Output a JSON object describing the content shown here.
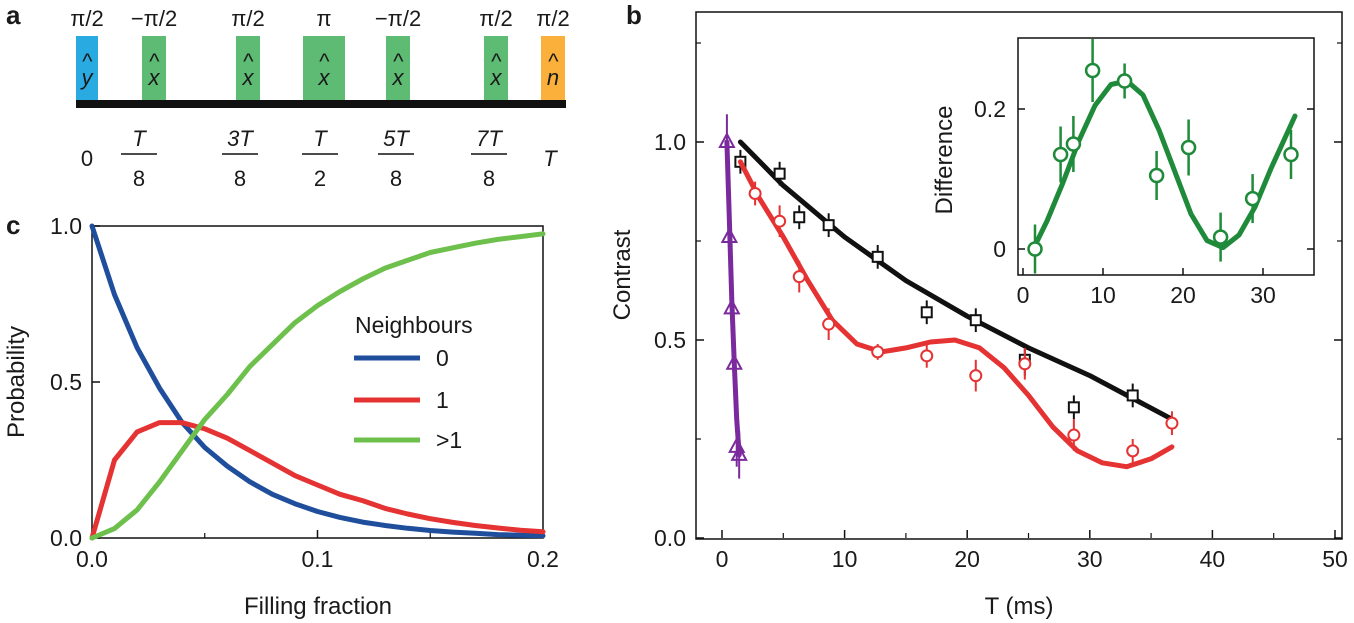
{
  "panels": {
    "a": "a",
    "b": "b",
    "c": "c"
  },
  "panel_a": {
    "axis_color": "#111111",
    "pulses": [
      {
        "angle": "π/2",
        "op": "y",
        "color": "#29abe2"
      },
      {
        "angle": "−π/2",
        "op": "x",
        "color": "#5dbb74"
      },
      {
        "angle": "π/2",
        "op": "x",
        "color": "#5dbb74"
      },
      {
        "angle": "π",
        "op": "x",
        "color": "#5dbb74"
      },
      {
        "angle": "−π/2",
        "op": "x",
        "color": "#5dbb74"
      },
      {
        "angle": "π/2",
        "op": "x",
        "color": "#5dbb74"
      },
      {
        "angle": "π/2",
        "op": "n",
        "color": "#fbb03b"
      }
    ],
    "hat": "^",
    "times": [
      {
        "plain": "0"
      },
      {
        "num": "T",
        "den": "8"
      },
      {
        "num": "3T",
        "den": "8"
      },
      {
        "num": "T",
        "den": "2"
      },
      {
        "num": "5T",
        "den": "8"
      },
      {
        "num": "7T",
        "den": "8"
      },
      {
        "plain": "T"
      }
    ]
  },
  "chart_data": [
    {
      "panel": "c",
      "type": "line",
      "xlabel": "Filling fraction",
      "ylabel": "Probability",
      "xlim": [
        0,
        0.2
      ],
      "ylim": [
        0,
        1.0
      ],
      "xticks": [
        "0.0",
        "0.1",
        "0.2"
      ],
      "yticks": [
        "0.0",
        "0.5",
        "1.0"
      ],
      "legend": {
        "title": "Neighbours",
        "placement": "right"
      },
      "x": [
        0.0,
        0.01,
        0.02,
        0.03,
        0.04,
        0.05,
        0.06,
        0.07,
        0.08,
        0.09,
        0.1,
        0.11,
        0.12,
        0.13,
        0.14,
        0.15,
        0.16,
        0.17,
        0.18,
        0.19,
        0.2
      ],
      "series": [
        {
          "name": "0",
          "color": "#1f4e9c",
          "values": [
            1.0,
            0.78,
            0.61,
            0.48,
            0.37,
            0.29,
            0.23,
            0.18,
            0.14,
            0.11,
            0.085,
            0.066,
            0.051,
            0.04,
            0.031,
            0.024,
            0.019,
            0.015,
            0.011,
            0.009,
            0.007
          ]
        },
        {
          "name": "1",
          "color": "#e53232",
          "values": [
            0.0,
            0.25,
            0.34,
            0.37,
            0.37,
            0.35,
            0.32,
            0.28,
            0.24,
            0.2,
            0.17,
            0.14,
            0.12,
            0.095,
            0.077,
            0.062,
            0.05,
            0.04,
            0.032,
            0.025,
            0.02
          ]
        },
        {
          "name": ">1",
          "color": "#6dc04b",
          "values": [
            0.0,
            0.03,
            0.09,
            0.18,
            0.28,
            0.38,
            0.46,
            0.55,
            0.62,
            0.69,
            0.745,
            0.79,
            0.83,
            0.865,
            0.89,
            0.915,
            0.93,
            0.945,
            0.957,
            0.966,
            0.975
          ]
        }
      ]
    },
    {
      "panel": "b",
      "type": "scatter",
      "xlabel": "T (ms)",
      "ylabel": "Contrast",
      "xlim": [
        -3,
        50
      ],
      "ylim": [
        0,
        1.3
      ],
      "xticks": [
        "0",
        "10",
        "20",
        "30",
        "40",
        "50"
      ],
      "yticks": [
        "0.0",
        "0.5",
        "1.0"
      ],
      "series": [
        {
          "name": "purple",
          "color": "#7a2a9c",
          "marker": "triangle",
          "x": [
            0.4,
            0.6,
            0.8,
            1.0,
            1.2,
            1.4
          ],
          "y": [
            1.0,
            0.76,
            0.58,
            0.44,
            0.23,
            0.21
          ],
          "err": [
            0.07,
            0.05,
            0.04,
            0.04,
            0.05,
            0.06
          ],
          "fit_x": [
            0.4,
            0.6,
            0.8,
            1.0,
            1.2,
            1.4
          ],
          "fit_y": [
            1.0,
            0.8,
            0.6,
            0.44,
            0.3,
            0.21
          ]
        },
        {
          "name": "black",
          "color": "#111111",
          "marker": "square",
          "x": [
            1.5,
            4.7,
            6.3,
            8.7,
            12.7,
            16.7,
            20.7,
            24.7,
            28.7,
            33.5
          ],
          "y": [
            0.95,
            0.92,
            0.81,
            0.79,
            0.71,
            0.57,
            0.55,
            0.45,
            0.33,
            0.36
          ],
          "err": [
            0.03,
            0.03,
            0.03,
            0.03,
            0.03,
            0.03,
            0.03,
            0.04,
            0.03,
            0.03
          ],
          "fit_x": [
            1.5,
            5,
            10,
            15,
            20,
            25,
            30,
            36.7
          ],
          "fit_y": [
            1.0,
            0.89,
            0.76,
            0.65,
            0.56,
            0.48,
            0.41,
            0.3
          ]
        },
        {
          "name": "red",
          "color": "#e53232",
          "marker": "circle",
          "x": [
            2.7,
            4.7,
            6.3,
            8.7,
            12.7,
            16.7,
            20.7,
            24.7,
            28.7,
            33.5,
            36.7
          ],
          "y": [
            0.87,
            0.8,
            0.66,
            0.54,
            0.47,
            0.46,
            0.41,
            0.44,
            0.26,
            0.22,
            0.29
          ],
          "err": [
            0.03,
            0.04,
            0.04,
            0.04,
            0.02,
            0.03,
            0.04,
            0.04,
            0.04,
            0.03,
            0.03
          ],
          "fit_x": [
            1.5,
            3,
            5,
            7,
            9,
            11,
            13,
            15,
            17,
            19,
            21,
            23,
            25,
            27,
            29,
            31,
            33,
            35,
            36.7
          ],
          "fit_y": [
            0.95,
            0.86,
            0.76,
            0.65,
            0.55,
            0.49,
            0.47,
            0.48,
            0.495,
            0.5,
            0.48,
            0.43,
            0.36,
            0.28,
            0.22,
            0.19,
            0.18,
            0.2,
            0.23
          ]
        }
      ]
    },
    {
      "panel": "b-inset",
      "type": "scatter",
      "xlabel": "",
      "ylabel": "Difference",
      "xlim": [
        0,
        36
      ],
      "ylim": [
        -0.02,
        0.3
      ],
      "xticks": [
        "0",
        "10",
        "20",
        "30"
      ],
      "yticks": [
        "0",
        "0.2"
      ],
      "series": [
        {
          "name": "green",
          "color": "#1e8a3a",
          "marker": "circle",
          "x": [
            1.5,
            4.7,
            6.3,
            8.7,
            12.7,
            16.7,
            20.7,
            24.7,
            28.7,
            33.5
          ],
          "y": [
            0.0,
            0.135,
            0.15,
            0.255,
            0.24,
            0.105,
            0.145,
            0.017,
            0.072,
            0.135
          ],
          "err": [
            0.035,
            0.04,
            0.04,
            0.045,
            0.025,
            0.035,
            0.04,
            0.035,
            0.035,
            0.035
          ],
          "fit_x": [
            1.5,
            3,
            5,
            7,
            9,
            11,
            13,
            15,
            17,
            19,
            21,
            23,
            25,
            27,
            29,
            31,
            33,
            34
          ],
          "fit_y": [
            0.005,
            0.04,
            0.095,
            0.155,
            0.205,
            0.235,
            0.24,
            0.22,
            0.17,
            0.11,
            0.05,
            0.012,
            0.002,
            0.02,
            0.06,
            0.115,
            0.165,
            0.19
          ]
        }
      ]
    }
  ]
}
